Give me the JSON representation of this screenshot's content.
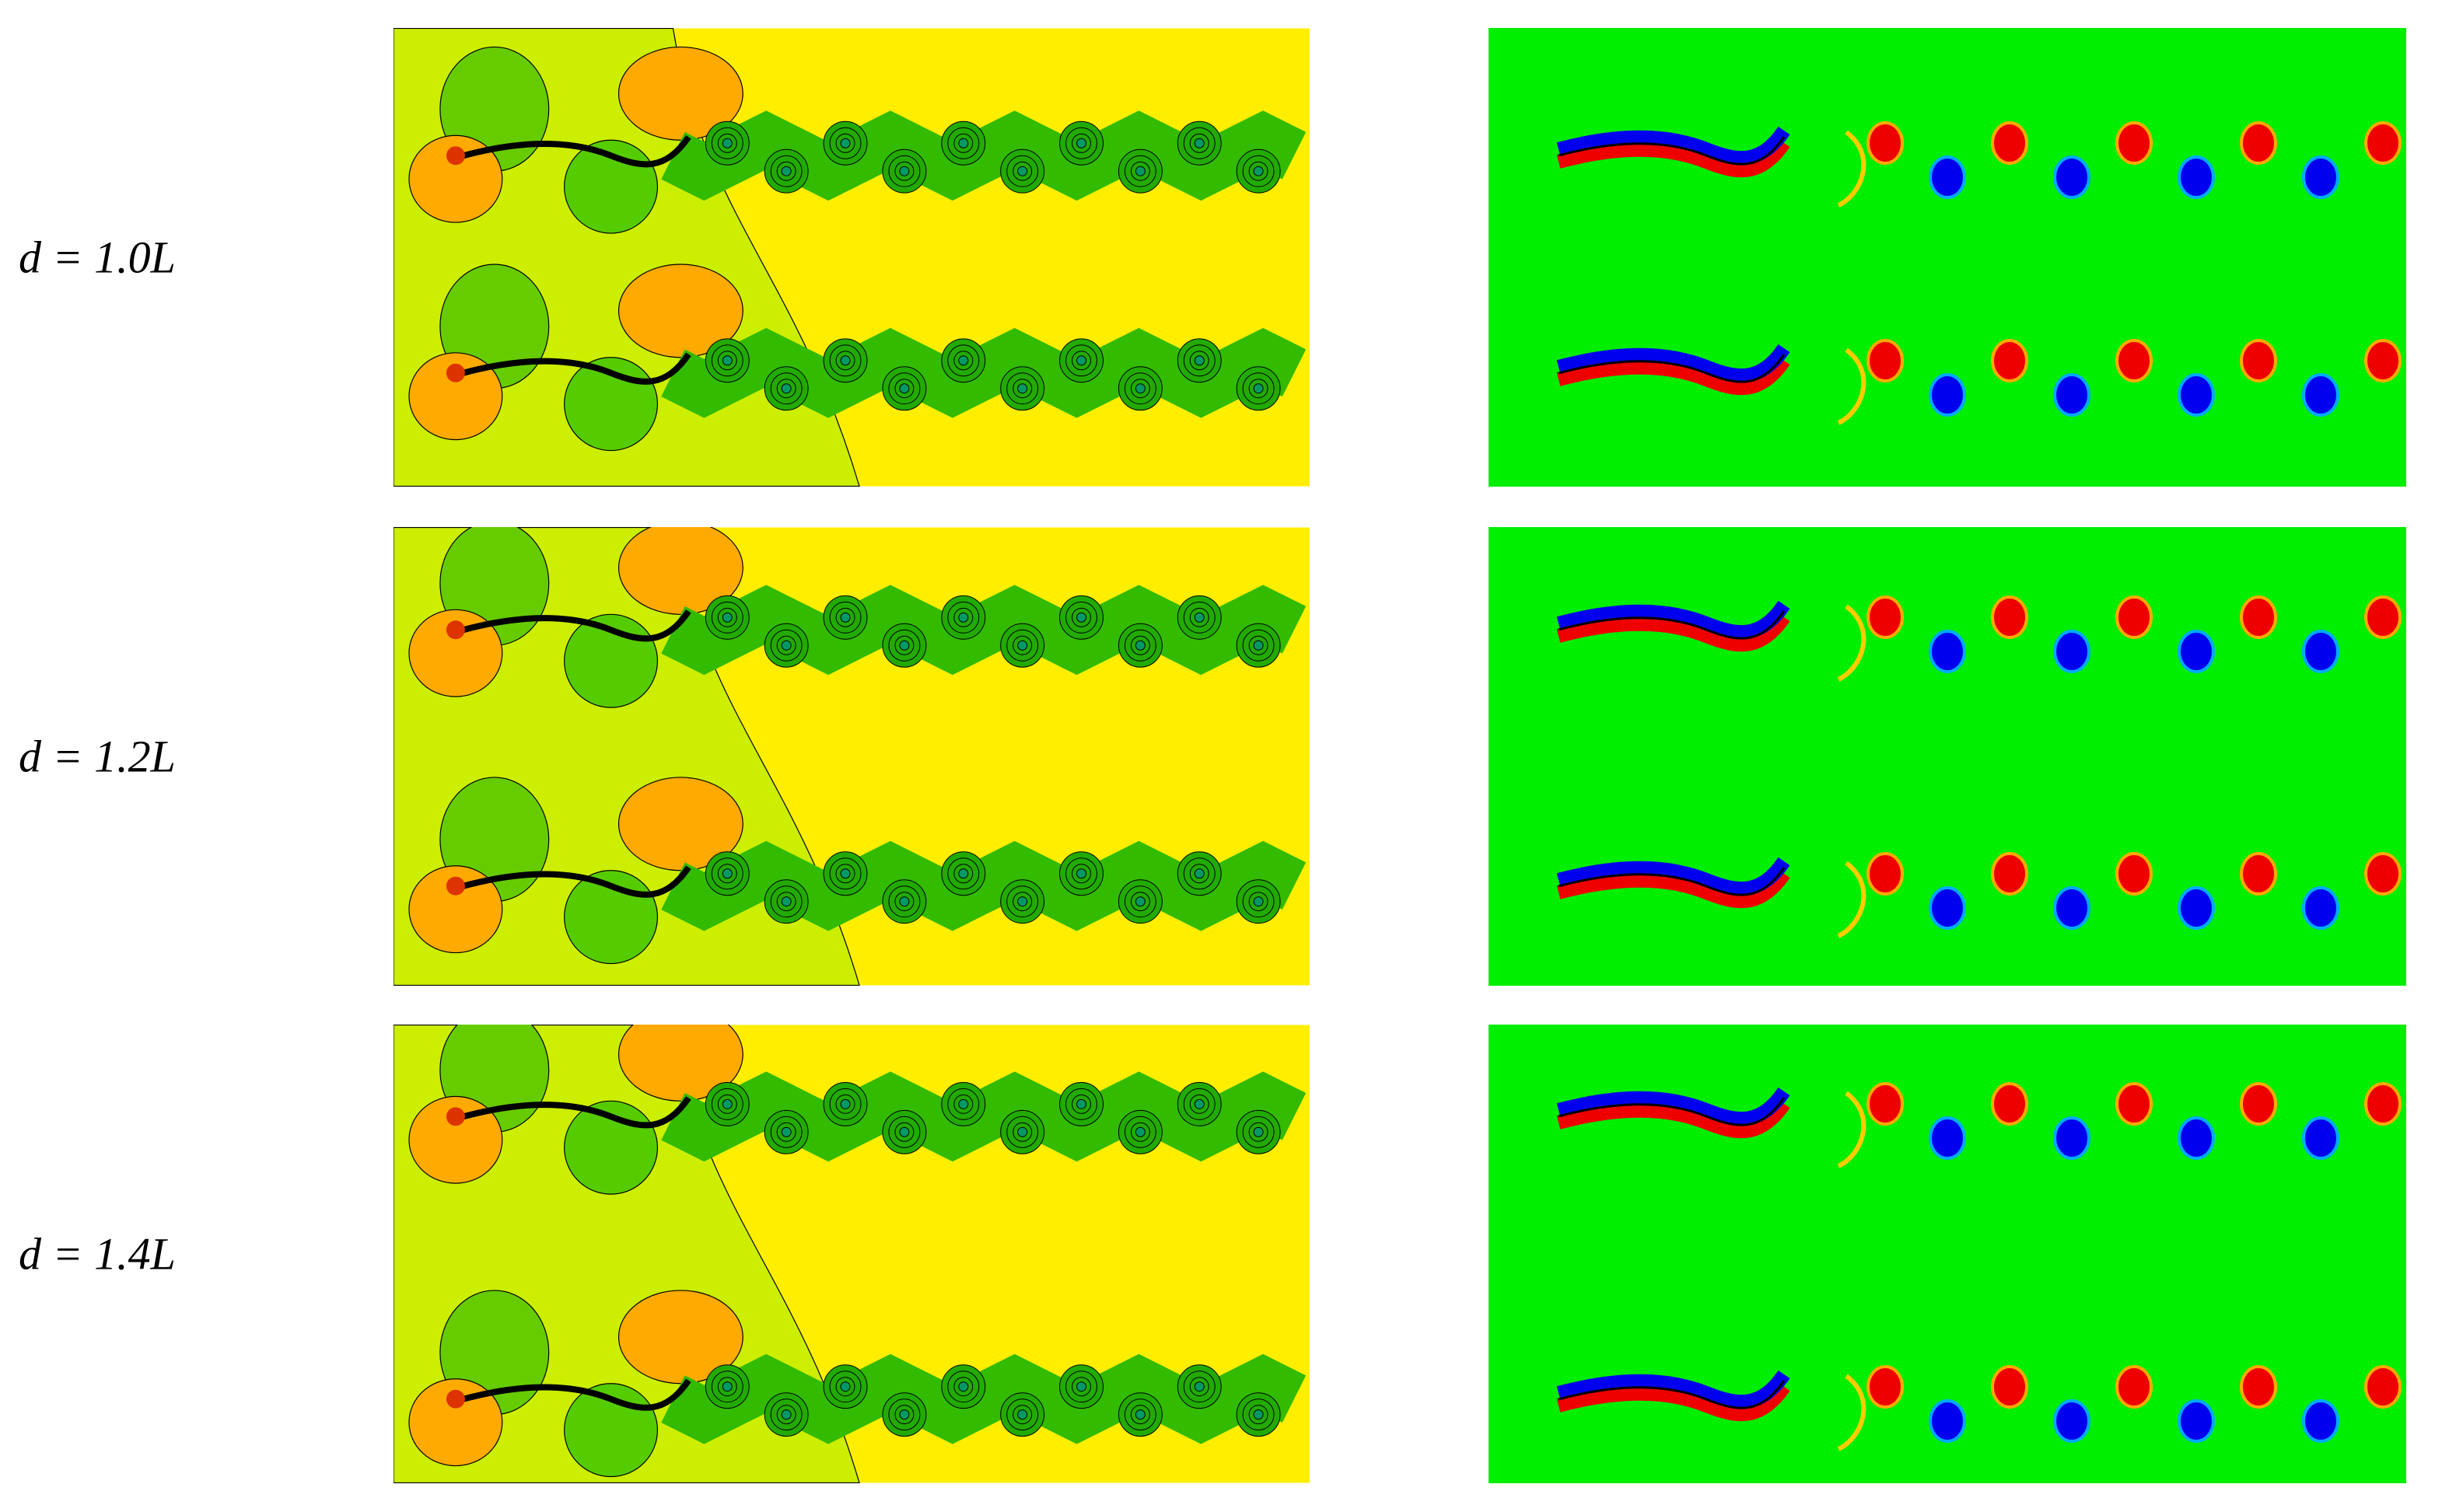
{
  "rows": [
    {
      "label": "d = 1.0L"
    },
    {
      "label": "d = 1.2L"
    },
    {
      "label": "d = 1.4L"
    }
  ]
}
